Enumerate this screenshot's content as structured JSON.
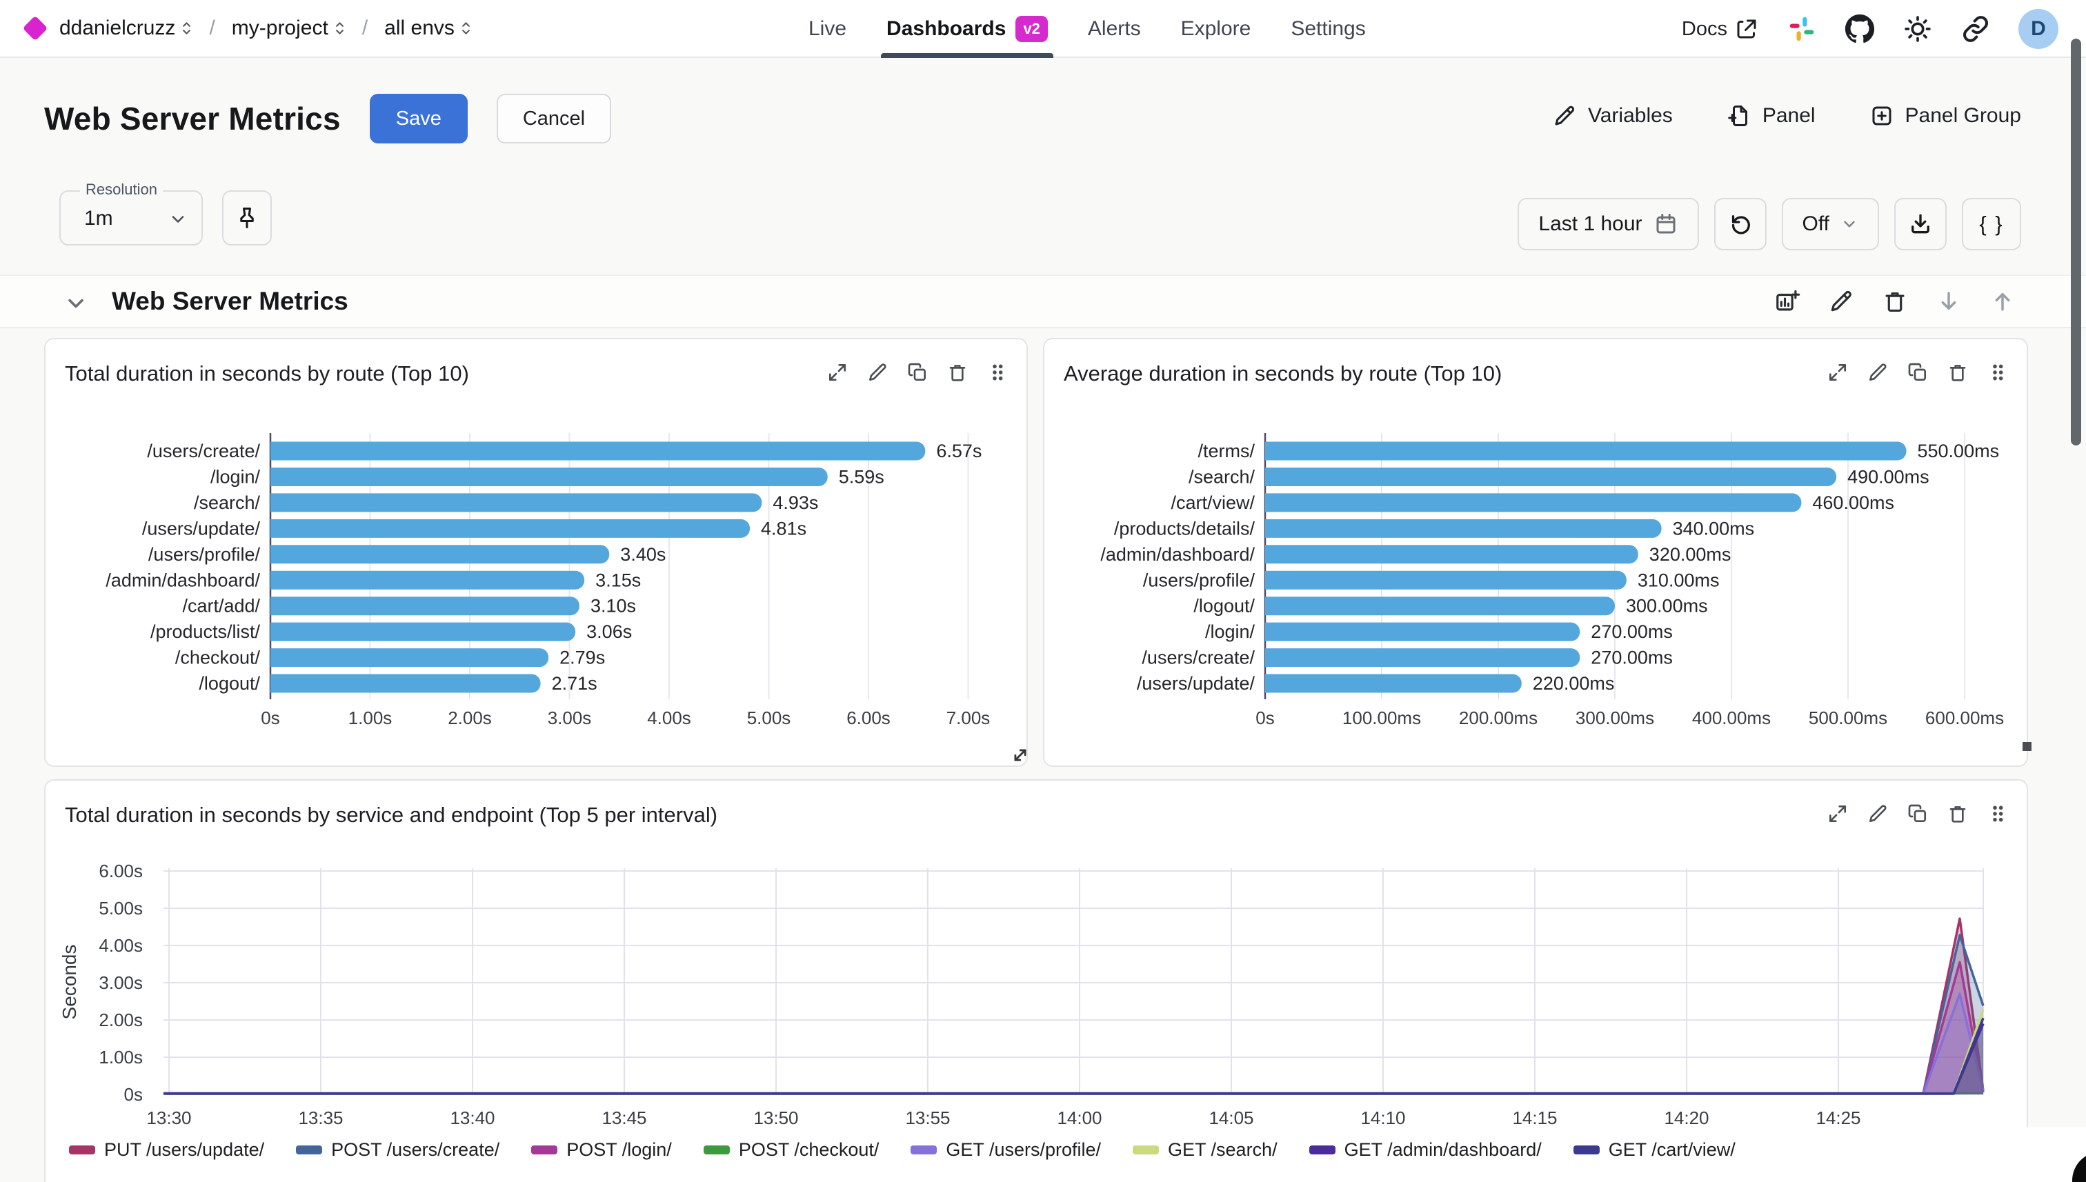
{
  "topnav": {
    "breadcrumb": [
      {
        "label": "ddanielcruzz"
      },
      {
        "label": "my-project"
      },
      {
        "label": "all envs"
      }
    ],
    "separator": "/",
    "nav_items": [
      {
        "label": "Live",
        "active": false
      },
      {
        "label": "Dashboards",
        "active": true,
        "badge": "v2"
      },
      {
        "label": "Alerts",
        "active": false
      },
      {
        "label": "Explore",
        "active": false
      },
      {
        "label": "Settings",
        "active": false
      }
    ],
    "docs_label": "Docs",
    "avatar_letter": "D"
  },
  "header": {
    "title": "Web Server Metrics",
    "save_label": "Save",
    "cancel_label": "Cancel",
    "variables_label": "Variables",
    "panel_label": "Panel",
    "panel_group_label": "Panel Group"
  },
  "controls": {
    "resolution_label": "Resolution",
    "resolution_value": "1m",
    "time_range": "Last 1 hour",
    "refresh_mode": "Off",
    "braces_label": "{ }"
  },
  "section": {
    "title": "Web Server Metrics"
  },
  "colors": {
    "accent_magenta": "#d52acd",
    "primary_blue": "#3b72d8",
    "bar_blue": "#54a7dd",
    "avatar_bg": "#a7cdf2"
  },
  "chart_data": [
    {
      "type": "bar",
      "orientation": "horizontal",
      "title": "Total duration in seconds by route (Top 10)",
      "categories": [
        "/users/create/",
        "/login/",
        "/search/",
        "/users/update/",
        "/users/profile/",
        "/admin/dashboard/",
        "/cart/add/",
        "/products/list/",
        "/checkout/",
        "/logout/"
      ],
      "values": [
        6.57,
        5.59,
        4.93,
        4.81,
        3.4,
        3.15,
        3.1,
        3.06,
        2.79,
        2.71
      ],
      "value_labels": [
        "6.57s",
        "5.59s",
        "4.93s",
        "4.81s",
        "3.40s",
        "3.15s",
        "3.10s",
        "3.06s",
        "2.79s",
        "2.71s"
      ],
      "tick_labels": [
        "0s",
        "1.00s",
        "2.00s",
        "3.00s",
        "4.00s",
        "5.00s",
        "6.00s",
        "7.00s"
      ],
      "tick_step": 1,
      "xlim": [
        0,
        7.5
      ],
      "bar_color": "#54a7dd",
      "grid": true
    },
    {
      "type": "bar",
      "orientation": "horizontal",
      "title": "Average duration in seconds by route (Top 10)",
      "categories": [
        "/terms/",
        "/search/",
        "/cart/view/",
        "/products/details/",
        "/admin/dashboard/",
        "/users/profile/",
        "/logout/",
        "/login/",
        "/users/create/",
        "/users/update/"
      ],
      "values": [
        550,
        490,
        460,
        340,
        320,
        310,
        300,
        270,
        270,
        220
      ],
      "value_labels": [
        "550.00ms",
        "490.00ms",
        "460.00ms",
        "340.00ms",
        "320.00ms",
        "310.00ms",
        "300.00ms",
        "270.00ms",
        "270.00ms",
        "220.00ms"
      ],
      "tick_labels": [
        "0s",
        "100.00ms",
        "200.00ms",
        "300.00ms",
        "400.00ms",
        "500.00ms",
        "600.00ms"
      ],
      "tick_step": 100,
      "xlim": [
        0,
        620
      ],
      "bar_color": "#54a7dd",
      "grid": true
    },
    {
      "type": "area",
      "title": "Total duration in seconds by service and endpoint (Top 5 per interval)",
      "ylabel": "Seconds",
      "y_tick_labels": [
        "0s",
        "1.00s",
        "2.00s",
        "3.00s",
        "4.00s",
        "5.00s",
        "6.00s"
      ],
      "ylim": [
        0,
        6
      ],
      "x_tick_labels": [
        "13:30",
        "13:35",
        "13:40",
        "13:45",
        "13:50",
        "13:55",
        "14:00",
        "14:05",
        "14:10",
        "14:15",
        "14:20",
        "14:25"
      ],
      "x_range_minutes": [
        0,
        60
      ],
      "grid": true,
      "legend_position": "bottom",
      "series": [
        {
          "name": "PUT /users/update/",
          "color": "#a83366",
          "points": [
            [
              0,
              0.03
            ],
            [
              57.8,
              0.03
            ],
            [
              59,
              4.72
            ],
            [
              60,
              0.1
            ]
          ]
        },
        {
          "name": "POST /users/create/",
          "color": "#44659b",
          "points": [
            [
              0,
              0.03
            ],
            [
              57.8,
              0.03
            ],
            [
              59,
              4.28
            ],
            [
              60,
              2.38
            ]
          ]
        },
        {
          "name": "POST /login/",
          "color": "#a53a96",
          "points": [
            [
              0,
              0.03
            ],
            [
              57.8,
              0.03
            ],
            [
              59,
              3.55
            ],
            [
              60,
              0.06
            ]
          ]
        },
        {
          "name": "POST /checkout/",
          "color": "#3d9a3f",
          "points": [
            [
              0,
              0.02
            ],
            [
              57.8,
              0.02
            ],
            [
              60,
              0.04
            ]
          ]
        },
        {
          "name": "GET /users/profile/",
          "color": "#8670db",
          "points": [
            [
              0,
              0.03
            ],
            [
              57.8,
              0.03
            ],
            [
              59,
              2.7
            ],
            [
              60,
              0.1
            ]
          ]
        },
        {
          "name": "GET /search/",
          "color": "#cbda7c",
          "points": [
            [
              0,
              0.02
            ],
            [
              58.8,
              0.02
            ],
            [
              60,
              2.28
            ]
          ]
        },
        {
          "name": "GET /admin/dashboard/",
          "color": "#4a2c9c",
          "points": [
            [
              0,
              0.02
            ],
            [
              58.8,
              0.02
            ],
            [
              60,
              1.9
            ]
          ]
        },
        {
          "name": "GET /cart/view/",
          "color": "#3a3a90",
          "points": [
            [
              0,
              0.02
            ],
            [
              58.8,
              0.02
            ],
            [
              60,
              2.05
            ]
          ]
        }
      ]
    }
  ]
}
